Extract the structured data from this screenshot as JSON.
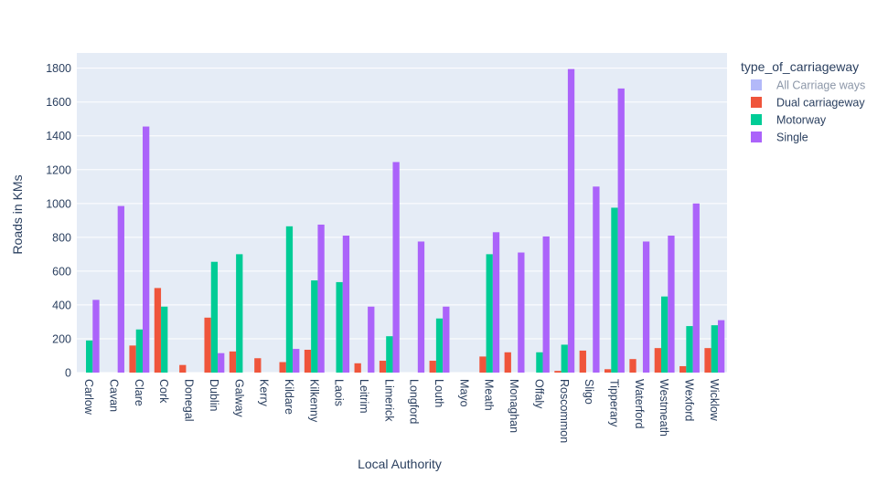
{
  "chart_data": {
    "type": "bar",
    "title": "",
    "xlabel": "Local Authority",
    "ylabel": "Roads in KMs",
    "ylim": [
      0,
      1890
    ],
    "yticks": [
      0,
      200,
      400,
      600,
      800,
      1000,
      1200,
      1400,
      1600,
      1800
    ],
    "grid": true,
    "legend_position": "right",
    "legend_title": "type_of_carriageway",
    "categories": [
      "Carlow",
      "Cavan",
      "Clare",
      "Cork",
      "Donegal",
      "Dublin",
      "Galway",
      "Kerry",
      "Kildare",
      "Kilkenny",
      "Laois",
      "Leitrim",
      "Limerick",
      "Longford",
      "Louth",
      "Mayo",
      "Meath",
      "Monaghan",
      "Offaly",
      "Roscommon",
      "Sligo",
      "Tipperary",
      "Waterford",
      "Westmeath",
      "Wexford",
      "Wicklow"
    ],
    "series": [
      {
        "name": "All Carriage ways",
        "color": "#b3b9f9",
        "hidden": true,
        "values": [
          null,
          null,
          null,
          null,
          null,
          null,
          null,
          null,
          null,
          null,
          null,
          null,
          null,
          null,
          null,
          null,
          null,
          null,
          null,
          null,
          null,
          null,
          null,
          null,
          null,
          null
        ]
      },
      {
        "name": "Dual carriageway",
        "color": "#ef553b",
        "values": [
          0,
          0,
          160,
          500,
          45,
          325,
          125,
          85,
          62,
          135,
          0,
          55,
          70,
          0,
          70,
          0,
          95,
          120,
          0,
          10,
          130,
          20,
          80,
          145,
          38,
          145
        ]
      },
      {
        "name": "Motorway",
        "color": "#00cc96",
        "values": [
          190,
          0,
          255,
          390,
          0,
          655,
          700,
          0,
          865,
          545,
          535,
          0,
          215,
          0,
          320,
          0,
          700,
          0,
          120,
          165,
          0,
          975,
          0,
          450,
          275,
          280
        ]
      },
      {
        "name": "Single",
        "color": "#ab63fa",
        "values": [
          430,
          985,
          1455,
          0,
          0,
          115,
          0,
          0,
          140,
          875,
          810,
          390,
          1245,
          775,
          390,
          0,
          830,
          710,
          805,
          1795,
          1100,
          1680,
          775,
          810,
          1000,
          310
        ]
      }
    ]
  }
}
